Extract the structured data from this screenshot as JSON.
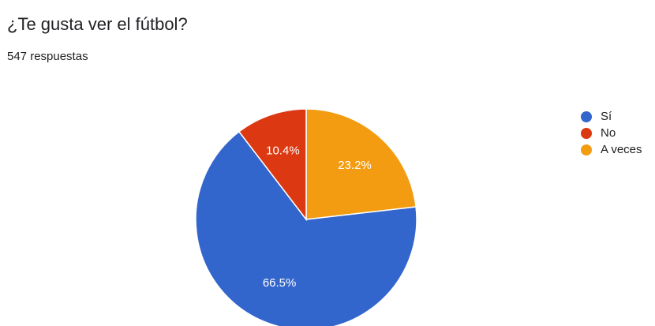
{
  "question": {
    "title": "¿Te gusta ver el fútbol?",
    "responses": "547 respuestas"
  },
  "chart_data": {
    "type": "pie",
    "title": "¿Te gusta ver el fútbol?",
    "total_responses": 547,
    "start_angle": "top, clockwise",
    "legend_position": "right",
    "slices": [
      {
        "label": "A veces",
        "value": 23.2,
        "display": "23.2%",
        "color": "#f39c12"
      },
      {
        "label": "Sí",
        "value": 66.5,
        "display": "66.5%",
        "color": "#3366cc"
      },
      {
        "label": "No",
        "value": 10.4,
        "display": "10.4%",
        "color": "#dc3912"
      }
    ]
  },
  "legend": [
    {
      "label": "Sí",
      "color": "#3366cc"
    },
    {
      "label": "No",
      "color": "#dc3912"
    },
    {
      "label": "A veces",
      "color": "#f39c12"
    }
  ]
}
